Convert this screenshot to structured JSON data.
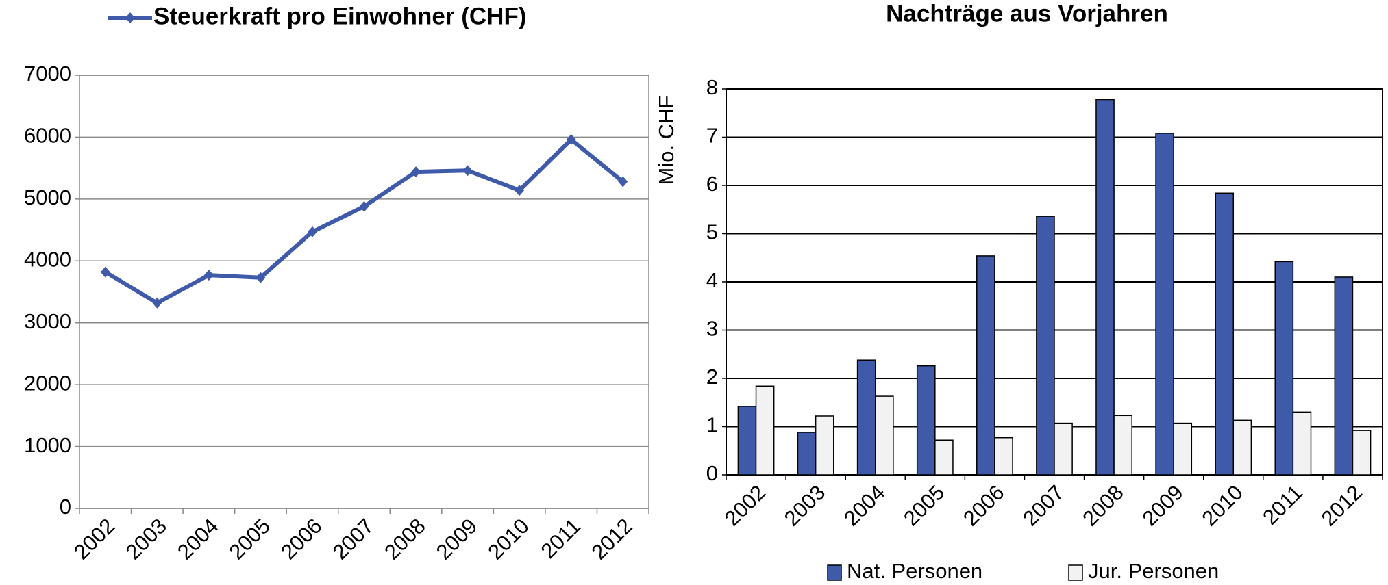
{
  "chart_data": [
    {
      "type": "line",
      "categories": [
        "2002",
        "2003",
        "2004",
        "2005",
        "2006",
        "2007",
        "2008",
        "2009",
        "2010",
        "2011",
        "2012"
      ],
      "series": [
        {
          "name": "Steuerkraft pro Einwohner (CHF)",
          "color": "#3f5aa8",
          "values": [
            3820,
            3320,
            3770,
            3730,
            4470,
            4880,
            5440,
            5460,
            5140,
            5960,
            5280
          ]
        }
      ],
      "ylim": [
        0,
        7000
      ],
      "yticks": [
        0,
        1000,
        2000,
        3000,
        4000,
        5000,
        6000,
        7000
      ],
      "grid": true,
      "legend": "top"
    },
    {
      "type": "bar",
      "title": "Nachträge aus Vorjahren",
      "y_label": "Mio. CHF",
      "categories": [
        "2002",
        "2003",
        "2004",
        "2005",
        "2006",
        "2007",
        "2008",
        "2009",
        "2010",
        "2011",
        "2012"
      ],
      "series": [
        {
          "name": "Nat. Personen",
          "color": "#3f5aa8",
          "values": [
            1.42,
            0.88,
            2.38,
            2.26,
            4.54,
            5.36,
            7.78,
            7.08,
            5.84,
            4.42,
            4.1
          ]
        },
        {
          "name": "Jur. Personen",
          "color": "#f2f2f2",
          "values": [
            1.84,
            1.22,
            1.63,
            0.72,
            0.77,
            1.07,
            1.23,
            1.07,
            1.13,
            1.3,
            0.92
          ]
        }
      ],
      "ylim": [
        0,
        8
      ],
      "yticks": [
        0,
        1,
        2,
        3,
        4,
        5,
        6,
        7,
        8
      ],
      "grid": true,
      "legend": "bottom"
    }
  ]
}
